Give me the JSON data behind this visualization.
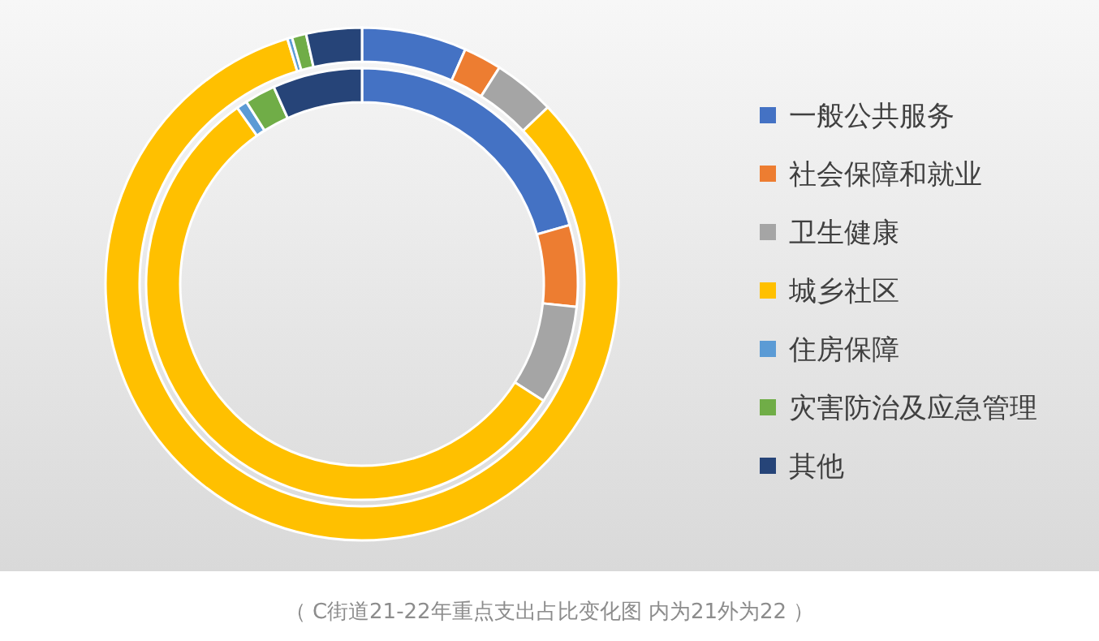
{
  "chart_data": {
    "type": "donut",
    "categories": [
      "一般公共服务",
      "社会保障和就业",
      "卫生健康",
      "城乡社区",
      "住房保障",
      "灾害防治及应急管理",
      "其他"
    ],
    "colors": [
      "#4472c4",
      "#ed7d31",
      "#a5a5a5",
      "#ffc000",
      "#5b9bd5",
      "#70ad47",
      "#264478"
    ],
    "series": [
      {
        "values": [
          20.6,
          6.1,
          7.4,
          56.1,
          0.8,
          2.3,
          6.7
        ]
      },
      {
        "values": [
          6.6,
          2.4,
          3.9,
          82.4,
          0.3,
          0.9,
          3.5
        ]
      }
    ],
    "legend": "right",
    "annotations": [
      "（ C街道21-22年重点支出占比变化图  内为21外为22 ）"
    ]
  }
}
